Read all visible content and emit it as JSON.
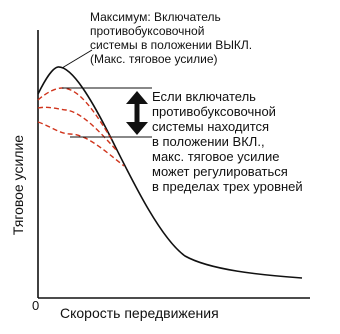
{
  "annotations": {
    "max_traction": "Максимум: Включатель\nпротивобуксовочной\nсистемы в положении ВЫКЛ.\n(Макс. тяговое усилие)",
    "traction_control_on": "Если включатель\nпротивобуксовочной\nсистемы находится\nв положении ВКЛ.,\nмакс. тяговое усилие\nможет регулироваться\nв пределах трех уровней"
  },
  "axes": {
    "x_label": "Скорость передвижения",
    "y_label": "Тяговое усилие",
    "origin_label": "0"
  },
  "colors": {
    "main_curve": "#111111",
    "level_curves": "#d0341c",
    "arrow": "#111111"
  },
  "levels_count": 3
}
